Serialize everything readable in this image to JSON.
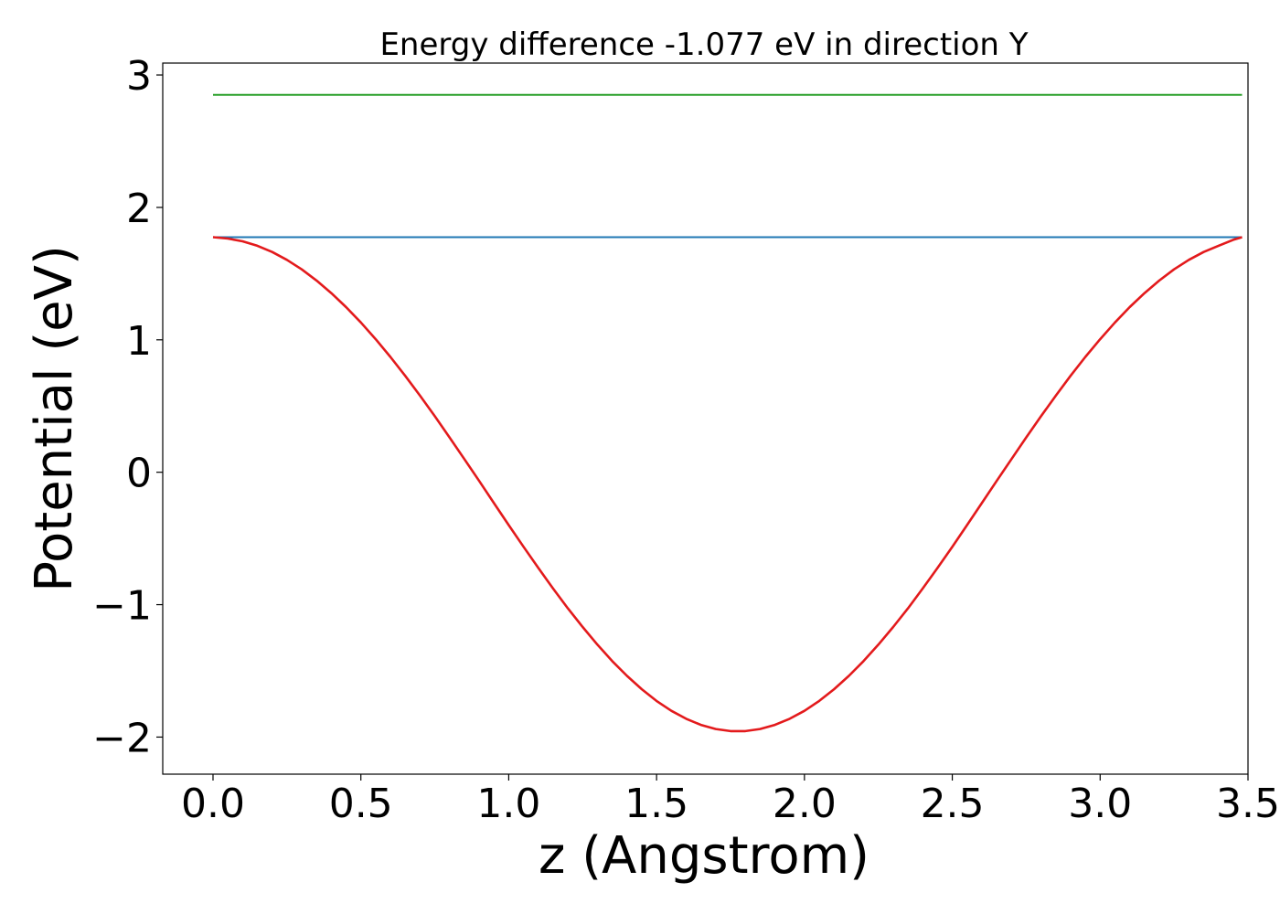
{
  "chart_data": {
    "type": "line",
    "title": "Energy difference -1.077 eV in direction Y",
    "xlabel": "z (Angstrom)",
    "ylabel": "Potential (eV)",
    "xlim": [
      -0.17,
      3.5
    ],
    "ylim": [
      -2.28,
      3.09
    ],
    "grid": false,
    "xticks": [
      0.0,
      0.5,
      1.0,
      1.5,
      2.0,
      2.5,
      3.0,
      3.5
    ],
    "xtick_labels": [
      "0.0",
      "0.5",
      "1.0",
      "1.5",
      "2.0",
      "2.5",
      "3.0",
      "3.5"
    ],
    "yticks": [
      -2,
      -1,
      0,
      1,
      2,
      3
    ],
    "ytick_labels": [
      "−2",
      "−1",
      "0",
      "1",
      "2",
      "3"
    ],
    "series": [
      {
        "color": "#2ca02c",
        "x": [
          0.0,
          3.48
        ],
        "y": [
          2.85,
          2.85
        ]
      },
      {
        "color": "#1f77b4",
        "x": [
          0.0,
          3.48
        ],
        "y": [
          1.775,
          1.775
        ]
      },
      {
        "color": "#e31a1c",
        "x": [
          0.0,
          0.05,
          0.1,
          0.15,
          0.2,
          0.25,
          0.3,
          0.35,
          0.4,
          0.45,
          0.5,
          0.55,
          0.6,
          0.65,
          0.7,
          0.75,
          0.8,
          0.85,
          0.9,
          0.95,
          1.0,
          1.05,
          1.1,
          1.15,
          1.2,
          1.25,
          1.3,
          1.35,
          1.4,
          1.45,
          1.5,
          1.55,
          1.6,
          1.65,
          1.7,
          1.75,
          1.8,
          1.85,
          1.9,
          1.95,
          2.0,
          2.05,
          2.1,
          2.15,
          2.2,
          2.25,
          2.3,
          2.35,
          2.4,
          2.45,
          2.5,
          2.55,
          2.6,
          2.65,
          2.7,
          2.75,
          2.8,
          2.85,
          2.9,
          2.95,
          3.0,
          3.05,
          3.1,
          3.15,
          3.2,
          3.25,
          3.3,
          3.35,
          3.4,
          3.45,
          3.48
        ],
        "y": [
          1.775,
          1.765,
          1.744,
          1.71,
          1.663,
          1.604,
          1.532,
          1.448,
          1.353,
          1.247,
          1.131,
          1.005,
          0.871,
          0.728,
          0.578,
          0.423,
          0.263,
          0.099,
          -0.066,
          -0.233,
          -0.399,
          -0.563,
          -0.723,
          -0.878,
          -1.028,
          -1.169,
          -1.302,
          -1.426,
          -1.538,
          -1.639,
          -1.727,
          -1.802,
          -1.862,
          -1.908,
          -1.939,
          -1.955,
          -1.955,
          -1.939,
          -1.908,
          -1.862,
          -1.802,
          -1.727,
          -1.639,
          -1.538,
          -1.426,
          -1.302,
          -1.169,
          -1.028,
          -0.878,
          -0.723,
          -0.563,
          -0.399,
          -0.233,
          -0.066,
          0.099,
          0.263,
          0.423,
          0.578,
          0.728,
          0.871,
          1.005,
          1.131,
          1.247,
          1.353,
          1.448,
          1.532,
          1.604,
          1.663,
          1.71,
          1.755,
          1.775
        ]
      }
    ]
  }
}
